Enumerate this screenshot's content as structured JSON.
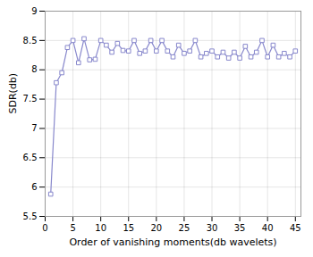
{
  "chart_data": {
    "type": "line",
    "x": [
      1,
      2,
      3,
      4,
      5,
      6,
      7,
      8,
      9,
      10,
      11,
      12,
      13,
      14,
      15,
      16,
      17,
      18,
      19,
      20,
      21,
      22,
      23,
      24,
      25,
      26,
      27,
      28,
      29,
      30,
      31,
      32,
      33,
      34,
      35,
      36,
      37,
      38,
      39,
      40,
      41,
      42,
      43,
      44,
      45
    ],
    "values": [
      5.88,
      7.78,
      7.95,
      8.38,
      8.5,
      8.12,
      8.53,
      8.17,
      8.18,
      8.5,
      8.42,
      8.3,
      8.45,
      8.33,
      8.32,
      8.5,
      8.28,
      8.32,
      8.5,
      8.32,
      8.5,
      8.32,
      8.22,
      8.42,
      8.28,
      8.32,
      8.5,
      8.22,
      8.28,
      8.32,
      8.22,
      8.3,
      8.2,
      8.3,
      8.2,
      8.4,
      8.22,
      8.3,
      8.5,
      8.22,
      8.42,
      8.22,
      8.28,
      8.22,
      8.32
    ],
    "color": "#8888cc",
    "marker": "square",
    "xlabel": "Order of vanishing moments(db wavelets)",
    "ylabel": "SDR(db)",
    "xlim": [
      0,
      46
    ],
    "ylim": [
      5.5,
      9
    ],
    "xticks": [
      0,
      5,
      10,
      15,
      20,
      25,
      30,
      35,
      40,
      45
    ],
    "yticks": [
      5.5,
      6,
      6.5,
      7,
      7.5,
      8,
      8.5,
      9
    ],
    "grid": true
  }
}
